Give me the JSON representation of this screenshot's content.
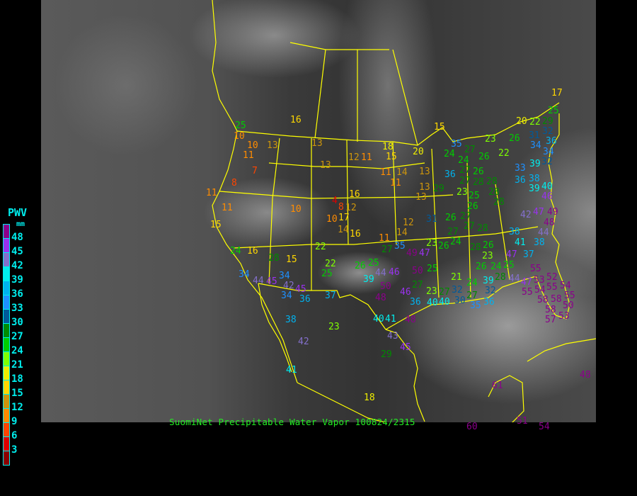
{
  "caption": "SuomiNet Precipitable Water Vapor 100824/2315",
  "legend": {
    "title": "PWV",
    "unit": "mm",
    "labels": [
      "48",
      "45",
      "42",
      "39",
      "36",
      "33",
      "30",
      "27",
      "24",
      "21",
      "18",
      "15",
      "12",
      "9",
      "6",
      "3"
    ],
    "colors": [
      "#8b008b",
      "#9932ee",
      "#8470cc",
      "#00eeee",
      "#00b2ee",
      "#1e90ff",
      "#005a9a",
      "#008b00",
      "#00cd00",
      "#7fff00",
      "#eeee00",
      "#ffd700",
      "#cd950c",
      "#ff8c00",
      "#ff4500",
      "#dd0000",
      "#8b0000"
    ]
  },
  "border_color": "#ffff00",
  "stations": [
    {
      "value": "16"
    },
    {
      "value": "25"
    },
    {
      "value": "10"
    },
    {
      "value": "10"
    },
    {
      "value": "13"
    },
    {
      "value": "11"
    },
    {
      "value": "7"
    },
    {
      "value": "8"
    },
    {
      "value": "11"
    },
    {
      "value": "11"
    },
    {
      "value": "15"
    },
    {
      "value": "13"
    },
    {
      "value": "13"
    },
    {
      "value": "12"
    },
    {
      "value": "11"
    },
    {
      "value": "18"
    },
    {
      "value": "15"
    },
    {
      "value": "11"
    },
    {
      "value": "14"
    },
    {
      "value": "11"
    },
    {
      "value": "16"
    },
    {
      "value": "4"
    },
    {
      "value": "8"
    },
    {
      "value": "12"
    },
    {
      "value": "10"
    },
    {
      "value": "17"
    },
    {
      "value": "10"
    },
    {
      "value": "14"
    },
    {
      "value": "16"
    },
    {
      "value": "13"
    },
    {
      "value": "13"
    },
    {
      "value": "13"
    },
    {
      "value": "12"
    },
    {
      "value": "14"
    },
    {
      "value": "11"
    },
    {
      "value": "20"
    },
    {
      "value": "15"
    },
    {
      "value": "24"
    },
    {
      "value": "16"
    },
    {
      "value": "28"
    },
    {
      "value": "15"
    },
    {
      "value": "22"
    },
    {
      "value": "22"
    },
    {
      "value": "25"
    },
    {
      "value": "34"
    },
    {
      "value": "44"
    },
    {
      "value": "45"
    },
    {
      "value": "34"
    },
    {
      "value": "42"
    },
    {
      "value": "34"
    },
    {
      "value": "45"
    },
    {
      "value": "36"
    },
    {
      "value": "37"
    },
    {
      "value": "39"
    },
    {
      "value": "26"
    },
    {
      "value": "25"
    },
    {
      "value": "27"
    },
    {
      "value": "35"
    },
    {
      "value": "44"
    },
    {
      "value": "46"
    },
    {
      "value": "50"
    },
    {
      "value": "50"
    },
    {
      "value": "48"
    },
    {
      "value": "49"
    },
    {
      "value": "47"
    },
    {
      "value": "38"
    },
    {
      "value": "23"
    },
    {
      "value": "42"
    },
    {
      "value": "40"
    },
    {
      "value": "41"
    },
    {
      "value": "43"
    },
    {
      "value": "45"
    },
    {
      "value": "29"
    },
    {
      "value": "41"
    },
    {
      "value": "18"
    },
    {
      "value": "25"
    },
    {
      "value": "27"
    },
    {
      "value": "46"
    },
    {
      "value": "36"
    },
    {
      "value": "23"
    },
    {
      "value": "27"
    },
    {
      "value": "40"
    },
    {
      "value": "40"
    },
    {
      "value": "48"
    },
    {
      "value": "35"
    },
    {
      "value": "27"
    },
    {
      "value": "24"
    },
    {
      "value": "23"
    },
    {
      "value": "26"
    },
    {
      "value": "22"
    },
    {
      "value": "24"
    },
    {
      "value": "27"
    },
    {
      "value": "26"
    },
    {
      "value": "26"
    },
    {
      "value": "27"
    },
    {
      "value": "28"
    },
    {
      "value": "36"
    },
    {
      "value": "28"
    },
    {
      "value": "28"
    },
    {
      "value": "28"
    },
    {
      "value": "23"
    },
    {
      "value": "25"
    },
    {
      "value": "29"
    },
    {
      "value": "26"
    },
    {
      "value": "27"
    },
    {
      "value": "26"
    },
    {
      "value": "31"
    },
    {
      "value": "27"
    },
    {
      "value": "28"
    },
    {
      "value": "27"
    },
    {
      "value": "17"
    },
    {
      "value": "25"
    },
    {
      "value": "20"
    },
    {
      "value": "22"
    },
    {
      "value": "29"
    },
    {
      "value": "32"
    },
    {
      "value": "31"
    },
    {
      "value": "34"
    },
    {
      "value": "36"
    },
    {
      "value": "34"
    },
    {
      "value": "32"
    },
    {
      "value": "39"
    },
    {
      "value": "33"
    },
    {
      "value": "36"
    },
    {
      "value": "38"
    },
    {
      "value": "39"
    },
    {
      "value": "40"
    },
    {
      "value": "46"
    },
    {
      "value": "42"
    },
    {
      "value": "47"
    },
    {
      "value": "49"
    },
    {
      "value": "48"
    },
    {
      "value": "44"
    },
    {
      "value": "38"
    },
    {
      "value": "41"
    },
    {
      "value": "38"
    },
    {
      "value": "47"
    },
    {
      "value": "37"
    },
    {
      "value": "23"
    },
    {
      "value": "26"
    },
    {
      "value": "24"
    },
    {
      "value": "28"
    },
    {
      "value": "26"
    },
    {
      "value": "23"
    },
    {
      "value": "26"
    },
    {
      "value": "24"
    },
    {
      "value": "25"
    },
    {
      "value": "28"
    },
    {
      "value": "55"
    },
    {
      "value": "21"
    },
    {
      "value": "24"
    },
    {
      "value": "39"
    },
    {
      "value": "32"
    },
    {
      "value": "44"
    },
    {
      "value": "47"
    },
    {
      "value": "53"
    },
    {
      "value": "52"
    },
    {
      "value": "55"
    },
    {
      "value": "55"
    },
    {
      "value": "54"
    },
    {
      "value": "58"
    },
    {
      "value": "58"
    },
    {
      "value": "55"
    },
    {
      "value": "54"
    },
    {
      "value": "50"
    },
    {
      "value": "58"
    },
    {
      "value": "57"
    },
    {
      "value": "53"
    },
    {
      "value": "32"
    },
    {
      "value": "30"
    },
    {
      "value": "27"
    },
    {
      "value": "35"
    },
    {
      "value": "36"
    },
    {
      "value": "48"
    },
    {
      "value": "61"
    },
    {
      "value": "60"
    },
    {
      "value": "54"
    },
    {
      "value": "51"
    }
  ]
}
